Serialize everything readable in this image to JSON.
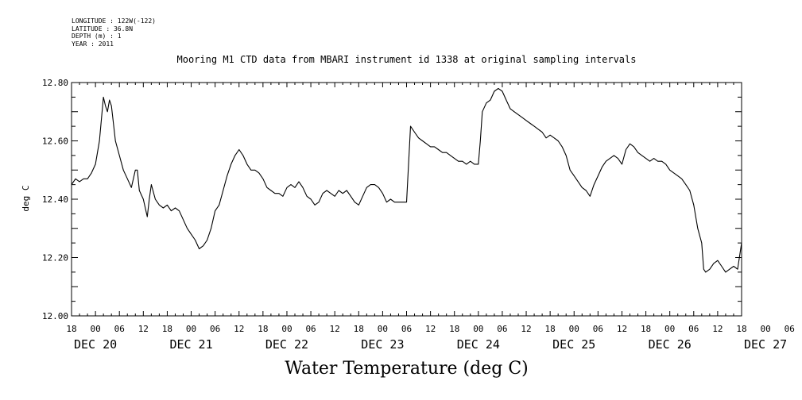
{
  "header": {
    "longitude": "LONGITUDE : 122W(-122)",
    "latitude": "LATITUDE : 36.8N",
    "depth": "DEPTH (m) : 1",
    "year": "YEAR : 2011"
  },
  "chart_data": {
    "type": "line",
    "title": "Mooring M1 CTD data from MBARI instrument id 1338 at original sampling intervals",
    "xlabel": "Water Temperature (deg C)",
    "ylabel": "deg C",
    "xlim": [
      -6,
      162
    ],
    "ylim": [
      12.0,
      12.8
    ],
    "yticks": [
      "12.00",
      "12.20",
      "12.40",
      "12.60",
      "12.80"
    ],
    "x_hour_labels": [
      "18",
      "00",
      "06",
      "12",
      "18",
      "00",
      "06",
      "12",
      "18",
      "00",
      "06",
      "12",
      "18",
      "00",
      "06",
      "12",
      "18",
      "00",
      "06",
      "12",
      "18",
      "00",
      "06",
      "12",
      "18",
      "00",
      "06",
      "12",
      "18",
      "00",
      "06",
      "12",
      "18"
    ],
    "x_day_labels": [
      "DEC 20",
      "DEC 21",
      "DEC 22",
      "DEC 23",
      "DEC 24",
      "DEC 25",
      "DEC 26",
      "DEC 27"
    ],
    "grid": false,
    "series": [
      {
        "values": [
          [
            -6,
            12.45
          ],
          [
            -5,
            12.47
          ],
          [
            -4,
            12.46
          ],
          [
            -3,
            12.47
          ],
          [
            -2,
            12.47
          ],
          [
            -1,
            12.49
          ],
          [
            0,
            12.52
          ],
          [
            1,
            12.6
          ],
          [
            2,
            12.75
          ],
          [
            2.5,
            12.72
          ],
          [
            3,
            12.7
          ],
          [
            3.5,
            12.74
          ],
          [
            4,
            12.72
          ],
          [
            5,
            12.6
          ],
          [
            6,
            12.55
          ],
          [
            7,
            12.5
          ],
          [
            8,
            12.47
          ],
          [
            9,
            12.44
          ],
          [
            10,
            12.5
          ],
          [
            10.5,
            12.5
          ],
          [
            11,
            12.43
          ],
          [
            12,
            12.4
          ],
          [
            13,
            12.34
          ],
          [
            13.5,
            12.4
          ],
          [
            14,
            12.45
          ],
          [
            15,
            12.4
          ],
          [
            16,
            12.38
          ],
          [
            17,
            12.37
          ],
          [
            18,
            12.38
          ],
          [
            19,
            12.36
          ],
          [
            20,
            12.37
          ],
          [
            21,
            12.36
          ],
          [
            22,
            12.33
          ],
          [
            23,
            12.3
          ],
          [
            24,
            12.28
          ],
          [
            25,
            12.26
          ],
          [
            26,
            12.23
          ],
          [
            27,
            12.24
          ],
          [
            28,
            12.26
          ],
          [
            29,
            12.3
          ],
          [
            30,
            12.36
          ],
          [
            31,
            12.38
          ],
          [
            32,
            12.43
          ],
          [
            33,
            12.48
          ],
          [
            34,
            12.52
          ],
          [
            35,
            12.55
          ],
          [
            36,
            12.57
          ],
          [
            37,
            12.55
          ],
          [
            38,
            12.52
          ],
          [
            39,
            12.5
          ],
          [
            40,
            12.5
          ],
          [
            41,
            12.49
          ],
          [
            42,
            12.47
          ],
          [
            43,
            12.44
          ],
          [
            44,
            12.43
          ],
          [
            45,
            12.42
          ],
          [
            46,
            12.42
          ],
          [
            47,
            12.41
          ],
          [
            48,
            12.44
          ],
          [
            49,
            12.45
          ],
          [
            50,
            12.44
          ],
          [
            51,
            12.46
          ],
          [
            52,
            12.44
          ],
          [
            53,
            12.41
          ],
          [
            54,
            12.4
          ],
          [
            55,
            12.38
          ],
          [
            56,
            12.39
          ],
          [
            57,
            12.42
          ],
          [
            58,
            12.43
          ],
          [
            59,
            12.42
          ],
          [
            60,
            12.41
          ],
          [
            61,
            12.43
          ],
          [
            62,
            12.42
          ],
          [
            63,
            12.43
          ],
          [
            64,
            12.41
          ],
          [
            65,
            12.39
          ],
          [
            66,
            12.38
          ],
          [
            67,
            12.41
          ],
          [
            68,
            12.44
          ],
          [
            69,
            12.45
          ],
          [
            70,
            12.45
          ],
          [
            71,
            12.44
          ],
          [
            72,
            12.42
          ],
          [
            73,
            12.39
          ],
          [
            74,
            12.4
          ],
          [
            75,
            12.39
          ],
          [
            76,
            12.39
          ],
          [
            77,
            12.39
          ],
          [
            78,
            12.39
          ],
          [
            78.5,
            12.52
          ],
          [
            79,
            12.65
          ],
          [
            80,
            12.63
          ],
          [
            81,
            12.61
          ],
          [
            82,
            12.6
          ],
          [
            83,
            12.59
          ],
          [
            84,
            12.58
          ],
          [
            85,
            12.58
          ],
          [
            86,
            12.57
          ],
          [
            87,
            12.56
          ],
          [
            88,
            12.56
          ],
          [
            89,
            12.55
          ],
          [
            90,
            12.54
          ],
          [
            91,
            12.53
          ],
          [
            92,
            12.53
          ],
          [
            93,
            12.52
          ],
          [
            94,
            12.53
          ],
          [
            95,
            12.52
          ],
          [
            96,
            12.52
          ],
          [
            96.5,
            12.6
          ],
          [
            97,
            12.7
          ],
          [
            98,
            12.73
          ],
          [
            99,
            12.74
          ],
          [
            100,
            12.77
          ],
          [
            101,
            12.78
          ],
          [
            102,
            12.77
          ],
          [
            103,
            12.74
          ],
          [
            104,
            12.71
          ],
          [
            105,
            12.7
          ],
          [
            106,
            12.69
          ],
          [
            107,
            12.68
          ],
          [
            108,
            12.67
          ],
          [
            109,
            12.66
          ],
          [
            110,
            12.65
          ],
          [
            111,
            12.64
          ],
          [
            112,
            12.63
          ],
          [
            113,
            12.61
          ],
          [
            114,
            12.62
          ],
          [
            115,
            12.61
          ],
          [
            116,
            12.6
          ],
          [
            117,
            12.58
          ],
          [
            118,
            12.55
          ],
          [
            119,
            12.5
          ],
          [
            120,
            12.48
          ],
          [
            121,
            12.46
          ],
          [
            122,
            12.44
          ],
          [
            123,
            12.43
          ],
          [
            124,
            12.41
          ],
          [
            125,
            12.45
          ],
          [
            126,
            12.48
          ],
          [
            127,
            12.51
          ],
          [
            128,
            12.53
          ],
          [
            129,
            12.54
          ],
          [
            130,
            12.55
          ],
          [
            131,
            12.54
          ],
          [
            132,
            12.52
          ],
          [
            133,
            12.57
          ],
          [
            134,
            12.59
          ],
          [
            135,
            12.58
          ],
          [
            136,
            12.56
          ],
          [
            137,
            12.55
          ],
          [
            138,
            12.54
          ],
          [
            139,
            12.53
          ],
          [
            140,
            12.54
          ],
          [
            141,
            12.53
          ],
          [
            142,
            12.53
          ],
          [
            143,
            12.52
          ],
          [
            144,
            12.5
          ],
          [
            145,
            12.49
          ],
          [
            146,
            12.48
          ],
          [
            147,
            12.47
          ],
          [
            148,
            12.45
          ],
          [
            149,
            12.43
          ],
          [
            150,
            12.38
          ],
          [
            151,
            12.3
          ],
          [
            152,
            12.25
          ],
          [
            152.5,
            12.16
          ],
          [
            153,
            12.15
          ],
          [
            154,
            12.16
          ],
          [
            155,
            12.18
          ],
          [
            156,
            12.19
          ],
          [
            157,
            12.17
          ],
          [
            158,
            12.15
          ],
          [
            159,
            12.16
          ],
          [
            160,
            12.17
          ],
          [
            161,
            12.16
          ],
          [
            162,
            12.25
          ]
        ]
      }
    ]
  }
}
